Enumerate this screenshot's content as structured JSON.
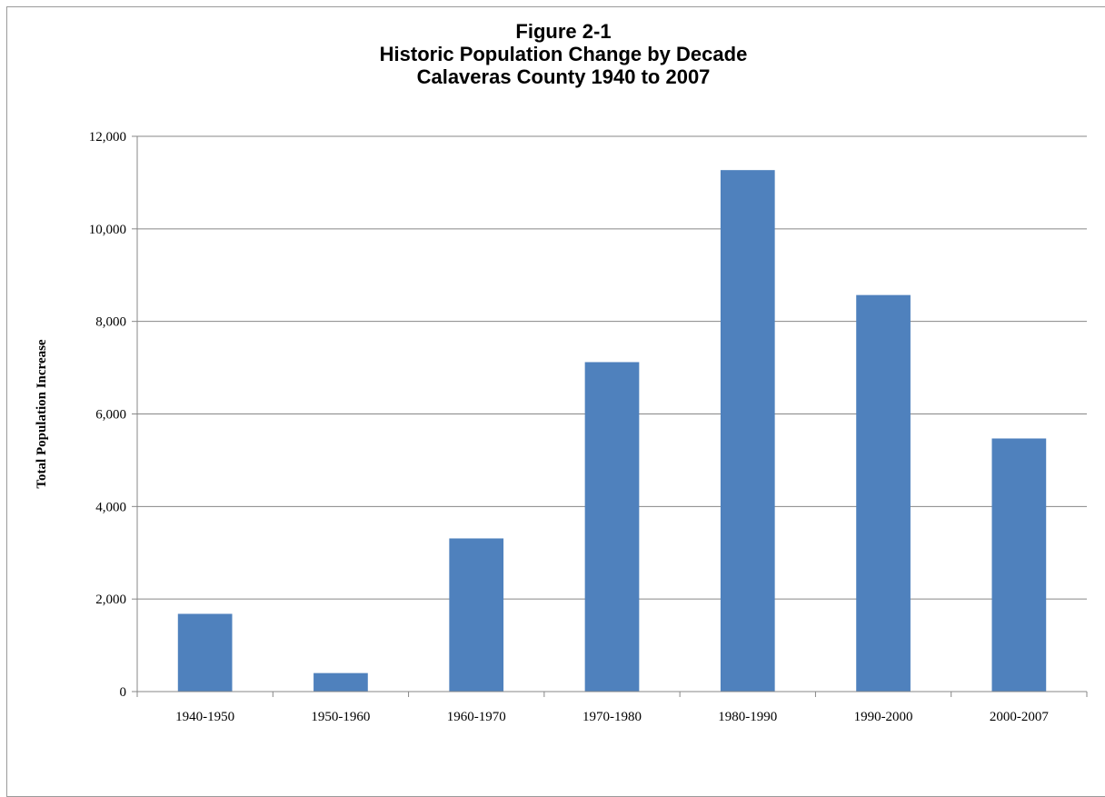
{
  "chart_data": {
    "type": "bar",
    "title_lines": [
      "Figure 2-1",
      "Historic Population Change by Decade",
      "Calaveras County 1940 to 2007"
    ],
    "xlabel": "",
    "ylabel": "Total Population Increase",
    "categories": [
      "1940-1950",
      "1950-1960",
      "1960-1970",
      "1970-1980",
      "1980-1990",
      "1990-2000",
      "2000-2007"
    ],
    "values": [
      1680,
      400,
      3310,
      7120,
      11270,
      8570,
      5470
    ],
    "ylim": [
      0,
      12000
    ],
    "yticks": [
      0,
      2000,
      4000,
      6000,
      8000,
      10000,
      12000
    ],
    "ytick_labels": [
      "0",
      "2,000",
      "4,000",
      "6,000",
      "8,000",
      "10,000",
      "12,000"
    ],
    "grid": true,
    "legend": "none",
    "bar_color": "#4f81bd",
    "grid_color": "#878787"
  }
}
